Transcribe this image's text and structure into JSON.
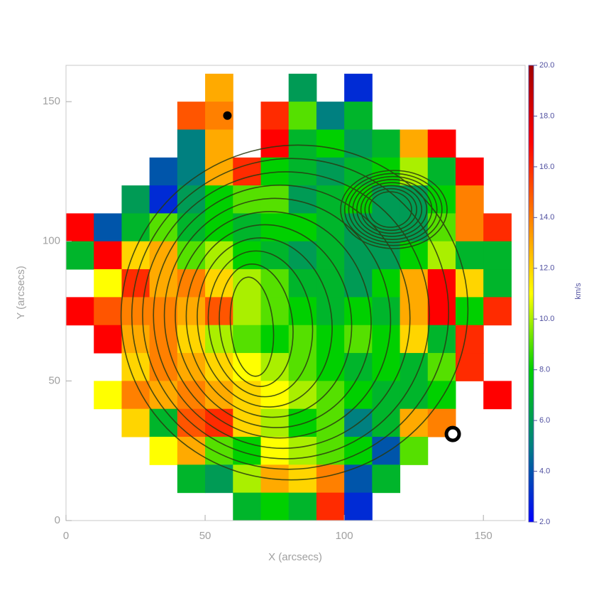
{
  "chart_data": {
    "type": "heatmap",
    "xlabel": "X (arcsecs)",
    "ylabel": "Y (arcsecs)",
    "colorbar_label": "km/s",
    "xlim": [
      0,
      165
    ],
    "ylim": [
      0,
      163
    ],
    "xticks": [
      0,
      50,
      100,
      150
    ],
    "yticks": [
      0,
      50,
      100,
      150
    ],
    "zlim": [
      2,
      20
    ],
    "zticks": [
      {
        "value": 2,
        "label": "2.0"
      },
      {
        "value": 4,
        "label": "4.0"
      },
      {
        "value": 6,
        "label": "6.0"
      },
      {
        "value": 8,
        "label": "8.0"
      },
      {
        "value": 10,
        "label": "10.0"
      },
      {
        "value": 12,
        "label": "12.0"
      },
      {
        "value": 14,
        "label": "14.0"
      },
      {
        "value": 16,
        "label": "16.0"
      },
      {
        "value": 18,
        "label": "18.0"
      },
      {
        "value": 20,
        "label": "20.0"
      }
    ],
    "colormap": [
      "#0000ff",
      "#008080",
      "#00d000",
      "#ffff00",
      "#ff8000",
      "#ff0000",
      "#a00000"
    ],
    "x": [
      5,
      15,
      25,
      35,
      45,
      55,
      65,
      75,
      85,
      95,
      105,
      115,
      125,
      135,
      145,
      155
    ],
    "y": [
      155,
      145,
      135,
      125,
      115,
      105,
      95,
      85,
      75,
      65,
      55,
      45,
      35,
      25,
      15,
      5
    ],
    "z": [
      [
        null,
        null,
        null,
        null,
        null,
        13,
        null,
        null,
        6,
        null,
        3,
        null,
        null,
        null,
        null,
        null
      ],
      [
        null,
        null,
        null,
        null,
        15,
        14,
        null,
        16,
        9,
        5,
        7,
        null,
        null,
        null,
        null,
        null
      ],
      [
        null,
        null,
        null,
        null,
        5,
        13,
        null,
        17,
        7,
        8,
        6,
        7,
        13,
        17,
        null,
        null
      ],
      [
        null,
        null,
        null,
        4,
        5,
        13,
        16,
        8,
        7,
        6,
        7,
        8,
        10,
        7,
        17,
        null
      ],
      [
        null,
        null,
        6,
        3,
        6,
        8,
        9,
        9,
        6,
        7,
        8,
        6,
        6,
        8,
        14,
        null
      ],
      [
        17,
        4,
        7,
        9,
        7,
        8,
        7,
        8,
        8,
        7,
        6,
        6,
        6,
        9,
        14,
        16
      ],
      [
        7,
        17,
        12,
        13,
        9,
        10,
        8,
        7,
        6,
        7,
        6,
        6,
        8,
        10,
        7,
        7
      ],
      [
        null,
        11,
        16,
        13,
        14,
        12,
        10,
        9,
        7,
        7,
        6,
        8,
        13,
        17,
        12,
        7
      ],
      [
        17,
        15,
        14,
        14,
        13,
        15,
        10,
        9,
        8,
        7,
        8,
        7,
        13,
        17,
        8,
        16
      ],
      [
        null,
        17,
        13,
        14,
        12,
        10,
        9,
        8,
        9,
        8,
        9,
        8,
        12,
        7,
        16,
        null
      ],
      [
        null,
        null,
        12,
        14,
        13,
        12,
        11,
        10,
        9,
        8,
        7,
        8,
        7,
        9,
        16,
        null
      ],
      [
        null,
        11,
        14,
        13,
        14,
        13,
        12,
        11,
        10,
        9,
        8,
        7,
        7,
        8,
        null,
        17
      ],
      [
        null,
        null,
        12,
        7,
        15,
        16,
        12,
        10,
        8,
        9,
        5,
        7,
        13,
        14,
        null,
        null
      ],
      [
        null,
        null,
        null,
        11,
        13,
        9,
        8,
        11,
        10,
        9,
        8,
        4,
        9,
        null,
        null,
        null
      ],
      [
        null,
        null,
        null,
        null,
        7,
        6,
        10,
        13,
        12,
        14,
        4,
        7,
        null,
        null,
        null,
        null
      ],
      [
        null,
        null,
        null,
        null,
        null,
        null,
        7,
        8,
        7,
        16,
        3,
        null,
        null,
        null,
        null,
        null
      ]
    ],
    "markers": [
      {
        "x": 58,
        "y": 145
      },
      {
        "x": 139,
        "y": 31
      }
    ]
  }
}
